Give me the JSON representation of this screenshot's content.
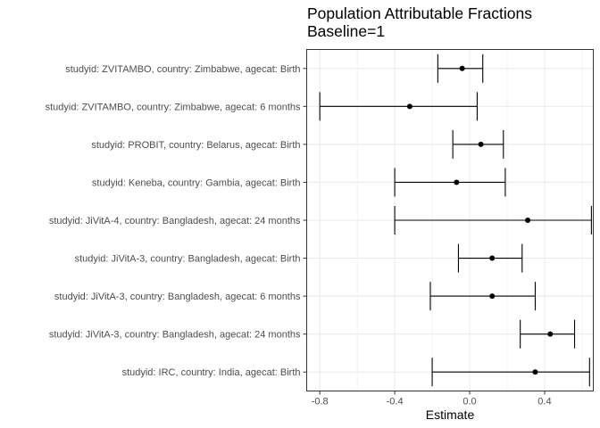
{
  "chart_data": {
    "type": "forest",
    "title": "Population Attributable Fractions",
    "subtitle": "Baseline=1",
    "xlabel": "Estimate",
    "ylabel": "",
    "xlim": [
      -0.87,
      0.66
    ],
    "x_ticks": [
      -0.8,
      -0.4,
      0.0,
      0.4
    ],
    "x_tick_labels": [
      "-0.8",
      "-0.4",
      "0.0",
      "0.4"
    ],
    "grid": true,
    "colors": {
      "points": "#000000",
      "grid": "#ebebeb",
      "panel_border": "#333333"
    },
    "rows": [
      {
        "label": "studyid: ZVITAMBO, country: Zimbabwe, agecat: Birth",
        "estimate": -0.04,
        "lower": -0.17,
        "upper": 0.07
      },
      {
        "label": "studyid: ZVITAMBO, country: Zimbabwe, agecat: 6 months",
        "estimate": -0.32,
        "lower": -0.8,
        "upper": 0.04
      },
      {
        "label": "studyid: PROBIT, country: Belarus, agecat: Birth",
        "estimate": 0.06,
        "lower": -0.09,
        "upper": 0.18
      },
      {
        "label": "studyid: Keneba, country: Gambia, agecat: Birth",
        "estimate": -0.07,
        "lower": -0.4,
        "upper": 0.19
      },
      {
        "label": "studyid: JiVitA-4, country: Bangladesh, agecat: 24 months",
        "estimate": 0.31,
        "lower": -0.4,
        "upper": 0.65
      },
      {
        "label": "studyid: JiVitA-3, country: Bangladesh, agecat: Birth",
        "estimate": 0.12,
        "lower": -0.06,
        "upper": 0.28
      },
      {
        "label": "studyid: JiVitA-3, country: Bangladesh, agecat: 6 months",
        "estimate": 0.12,
        "lower": -0.21,
        "upper": 0.35
      },
      {
        "label": "studyid: JiVitA-3, country: Bangladesh, agecat: 24 months",
        "estimate": 0.43,
        "lower": 0.27,
        "upper": 0.56
      },
      {
        "label": "studyid: IRC, country: India, agecat: Birth",
        "estimate": 0.35,
        "lower": -0.2,
        "upper": 0.64
      }
    ]
  }
}
